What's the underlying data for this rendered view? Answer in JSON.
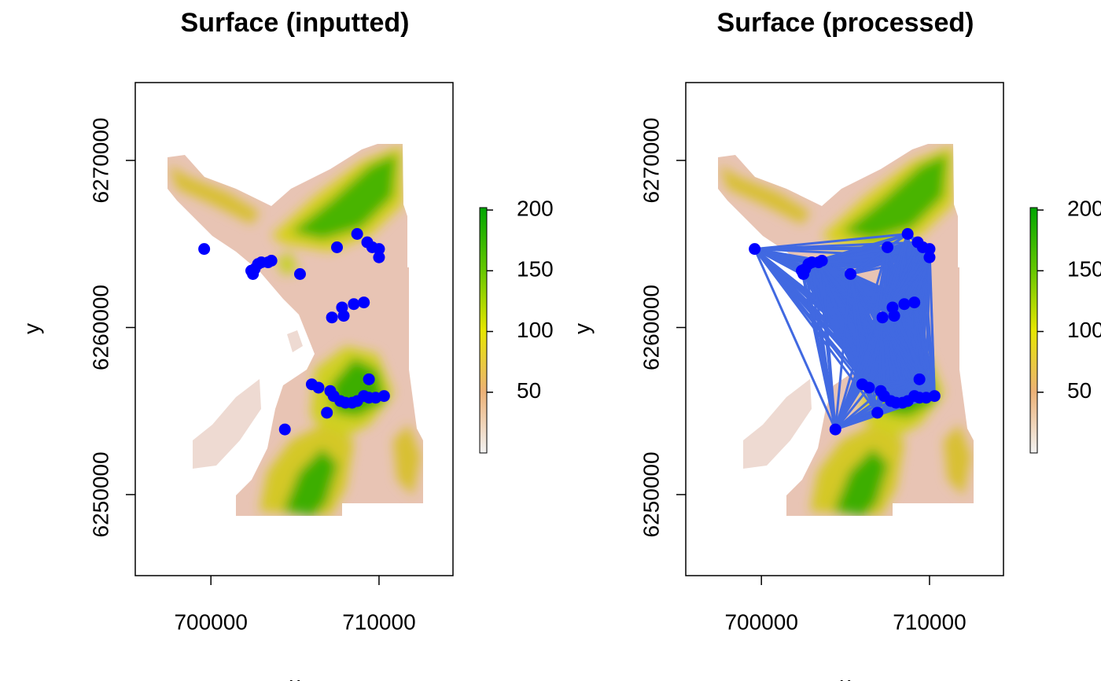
{
  "chart_data": [
    {
      "type": "scatter",
      "title": "Surface (inputted)",
      "x_label": "x",
      "y_label": "y",
      "x": [
        699600,
        702500,
        702400,
        702600,
        702800,
        703000,
        703600,
        703400,
        705300,
        707500,
        708700,
        709300,
        709600,
        710000,
        710000,
        709100,
        708500,
        707800,
        707900,
        707200,
        709400,
        706000,
        706400,
        707100,
        707300,
        707700,
        708000,
        708400,
        708700,
        709100,
        709400,
        709800,
        710300,
        706900,
        704400
      ],
      "values": [
        6264700,
        6263200,
        6263400,
        6263500,
        6263800,
        6263900,
        6264000,
        6263900,
        6263200,
        6264800,
        6265600,
        6265100,
        6264800,
        6264700,
        6264200,
        6261500,
        6261400,
        6261200,
        6260700,
        6260600,
        6256900,
        6256600,
        6256400,
        6256200,
        6255900,
        6255600,
        6255500,
        6255500,
        6255600,
        6255900,
        6255800,
        6255800,
        6255900,
        6254900,
        6253900
      ],
      "color": "#0000FF",
      "lines": false,
      "xlim": [
        695500,
        714400
      ],
      "ylim": [
        6245150,
        6274660
      ],
      "xticks": [
        700000,
        710000
      ],
      "yticks": [
        6250000,
        6260000,
        6270000
      ],
      "zlim": [
        0,
        202
      ],
      "zticks": [
        50,
        100,
        150,
        200
      ],
      "colorbar_colors": [
        "#F2F2F2",
        "#ECB176",
        "#E6E600",
        "#63C600",
        "#00A600"
      ]
    },
    {
      "type": "scatter",
      "title": "Surface (processed)",
      "x_label": "x",
      "y_label": "y",
      "x": [
        699600,
        702500,
        702400,
        702600,
        702800,
        703000,
        703600,
        703400,
        705300,
        707500,
        708700,
        709300,
        709600,
        710000,
        710000,
        709100,
        708500,
        707800,
        707900,
        707200,
        709400,
        706000,
        706400,
        707100,
        707300,
        707700,
        708000,
        708400,
        708700,
        709100,
        709400,
        709800,
        710300,
        706900,
        704400
      ],
      "values": [
        6264700,
        6263200,
        6263400,
        6263500,
        6263800,
        6263900,
        6264000,
        6263900,
        6263200,
        6264800,
        6265600,
        6265100,
        6264800,
        6264700,
        6264200,
        6261500,
        6261400,
        6261200,
        6260700,
        6260600,
        6256900,
        6256600,
        6256400,
        6256200,
        6255900,
        6255600,
        6255500,
        6255500,
        6255600,
        6255900,
        6255800,
        6255800,
        6255900,
        6254900,
        6253900
      ],
      "color": "#0000FF",
      "lines": true,
      "line_color": "#4169E1",
      "xlim": [
        695500,
        714400
      ],
      "ylim": [
        6245150,
        6274660
      ],
      "xticks": [
        700000,
        710000
      ],
      "yticks": [
        6250000,
        6260000,
        6270000
      ],
      "zlim": [
        0,
        202
      ],
      "zticks": [
        50,
        100,
        150,
        200
      ],
      "colorbar_colors": [
        "#F2F2F2",
        "#ECB176",
        "#E6E600",
        "#63C600",
        "#00A600"
      ]
    }
  ]
}
